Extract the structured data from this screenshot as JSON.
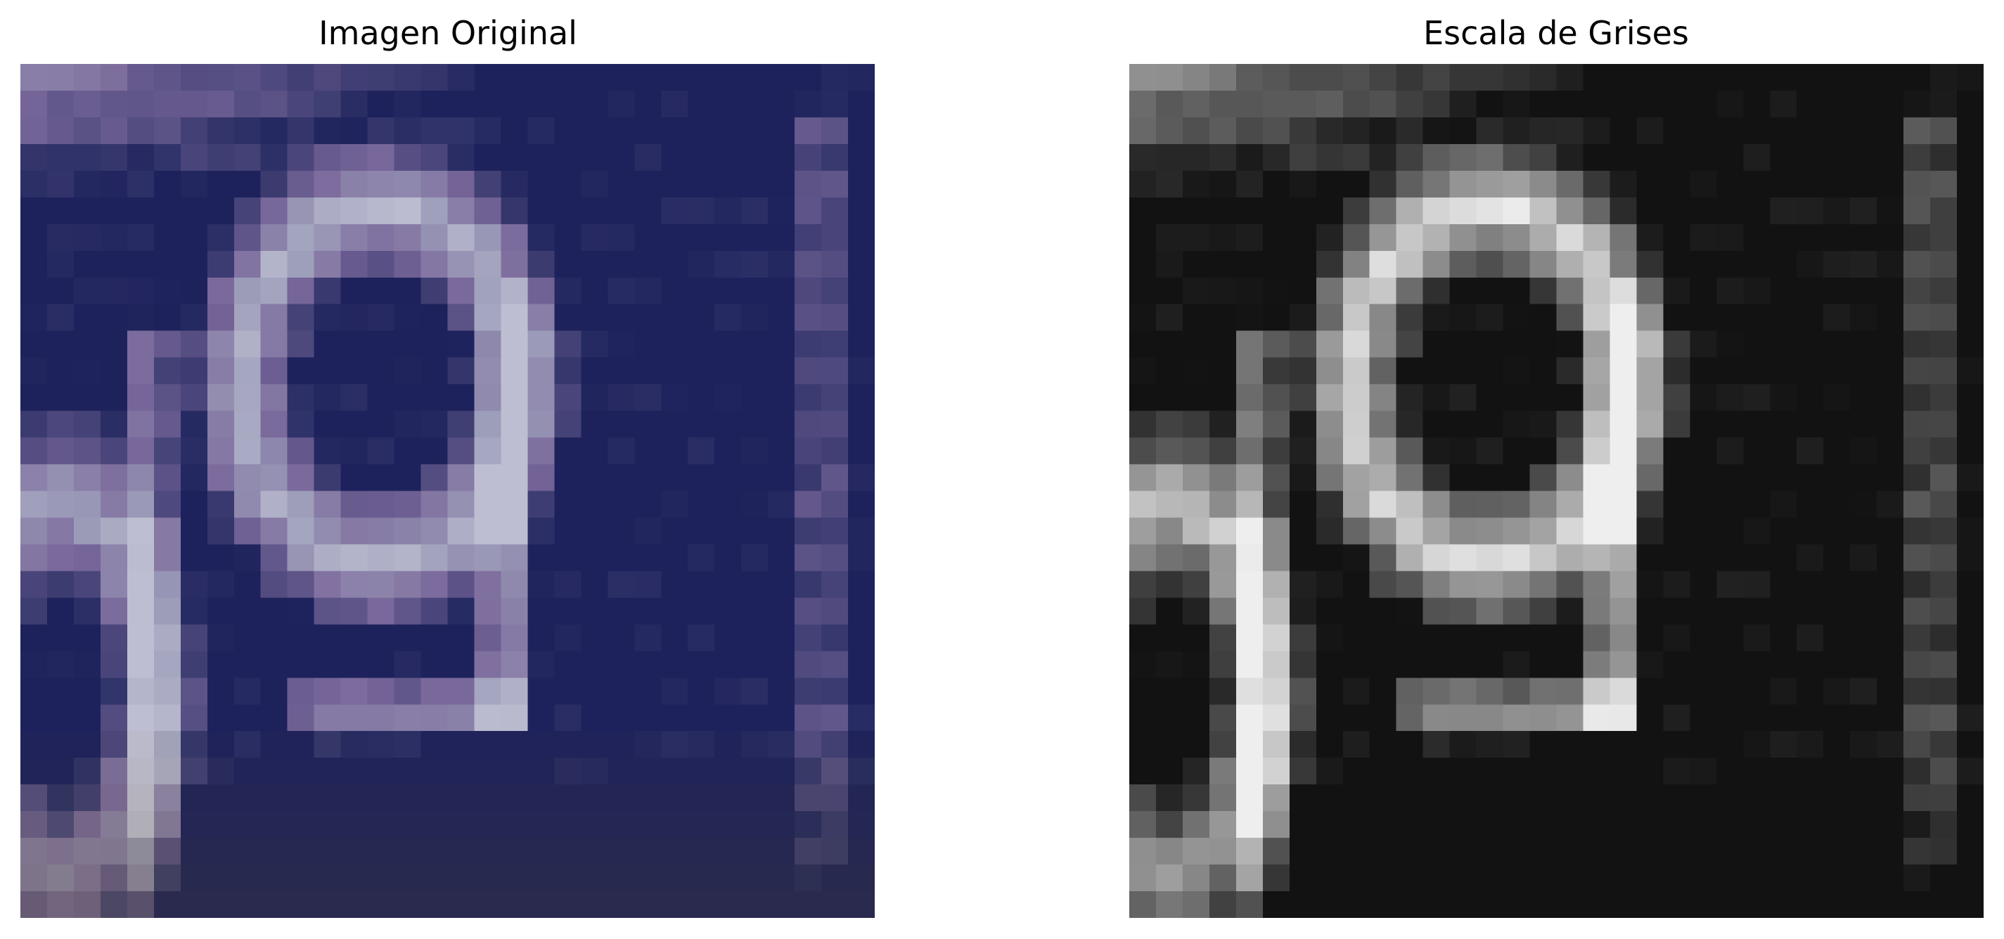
{
  "figure": {
    "panels": [
      {
        "title": "Imagen Original",
        "image": {
          "kind": "pixelated-photo",
          "mode": "color",
          "subject": "digit-like shapes on blue background"
        }
      },
      {
        "title": "Escala de Grises",
        "image": {
          "kind": "pixelated-photo",
          "mode": "grayscale",
          "subject": "digit-like shapes on dark background"
        }
      }
    ]
  },
  "colors": {
    "bg": "#ffffff",
    "title_text": "#000000",
    "orig_dark_blue": "#1a1f4a",
    "orig_mid_blue": "#2b2f6f",
    "orig_light": "#b8b6cf",
    "gray_dark": "#1c1c1c",
    "gray_mid": "#5a5a5a",
    "gray_light": "#e6e6e6"
  }
}
